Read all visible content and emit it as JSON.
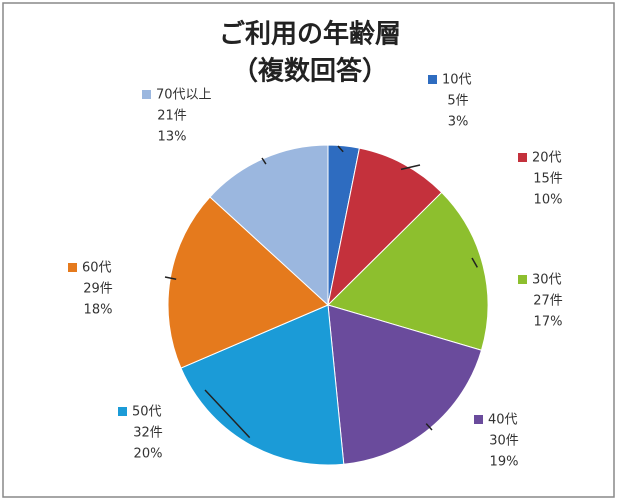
{
  "chart_data": {
    "type": "pie",
    "title": "ご利用の年齢層",
    "subtitle": "（複数回答）",
    "categories": [
      "10代",
      "20代",
      "30代",
      "40代",
      "50代",
      "60代",
      "70代以上"
    ],
    "values": [
      5,
      15,
      27,
      30,
      32,
      29,
      21
    ],
    "value_labels": [
      "5件",
      "15件",
      "27件",
      "30件",
      "32件",
      "29件",
      "21件"
    ],
    "percent_labels": [
      "3%",
      "10%",
      "17%",
      "19%",
      "20%",
      "18%",
      "13%"
    ],
    "colors": [
      "#2e6cc0",
      "#c4313c",
      "#8dbf2e",
      "#6a4b9c",
      "#1b9bd7",
      "#e57a1d",
      "#9bb7df"
    ]
  }
}
